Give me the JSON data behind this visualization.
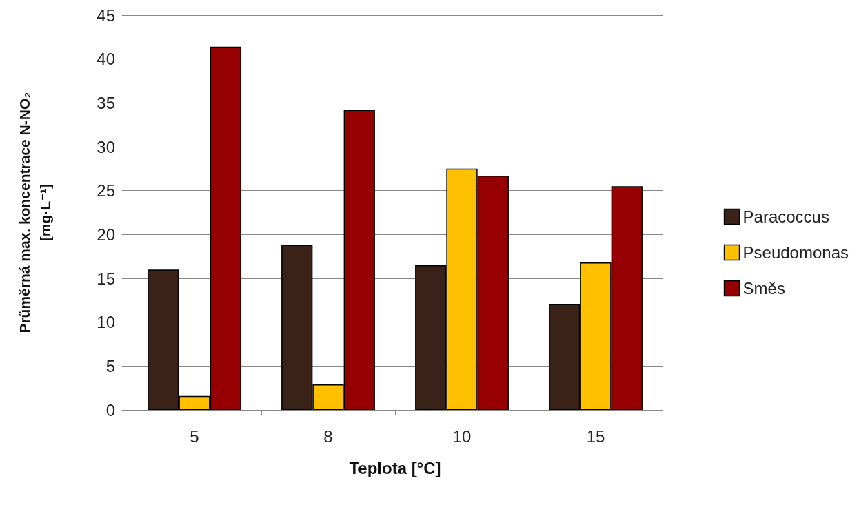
{
  "chart_data": {
    "type": "bar",
    "xlabel": "Teplota [°C]",
    "ylabel": "Průměrná max. koncentrace N-NO₂\n[mg·L⁻¹]",
    "categories": [
      "5",
      "8",
      "10",
      "15"
    ],
    "series": [
      {
        "name": "Paracoccus",
        "color": "#3b2218",
        "values": [
          16,
          18.8,
          16.5,
          12.1
        ]
      },
      {
        "name": "Pseudomonas",
        "color": "#ffc000",
        "values": [
          1.6,
          2.9,
          27.5,
          16.8
        ]
      },
      {
        "name": "Směs",
        "color": "#960000",
        "values": [
          41.4,
          34.2,
          26.7,
          25.5
        ]
      }
    ],
    "ylim": [
      0,
      45
    ],
    "yticks": [
      0,
      5,
      10,
      15,
      20,
      25,
      30,
      35,
      40,
      45
    ],
    "grid": "y",
    "legend": "right"
  }
}
